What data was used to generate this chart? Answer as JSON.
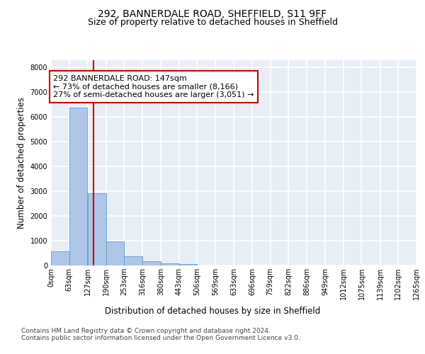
{
  "title1": "292, BANNERDALE ROAD, SHEFFIELD, S11 9FF",
  "title2": "Size of property relative to detached houses in Sheffield",
  "xlabel": "Distribution of detached houses by size in Sheffield",
  "ylabel": "Number of detached properties",
  "bar_values": [
    560,
    6380,
    2920,
    960,
    360,
    160,
    90,
    50,
    0,
    0,
    0,
    0,
    0,
    0,
    0,
    0,
    0,
    0,
    0
  ],
  "bin_edges": [
    0,
    63,
    127,
    190,
    253,
    316,
    380,
    443,
    506,
    569,
    633,
    696,
    759,
    822,
    886,
    949,
    1012,
    1075,
    1139,
    1202,
    1265
  ],
  "tick_labels": [
    "0sqm",
    "63sqm",
    "127sqm",
    "190sqm",
    "253sqm",
    "316sqm",
    "380sqm",
    "443sqm",
    "506sqm",
    "569sqm",
    "633sqm",
    "696sqm",
    "759sqm",
    "822sqm",
    "886sqm",
    "949sqm",
    "1012sqm",
    "1075sqm",
    "1139sqm",
    "1202sqm",
    "1265sqm"
  ],
  "bar_color": "#aec6e8",
  "bar_edge_color": "#5b9bd5",
  "vline_x": 147,
  "vline_color": "#cc0000",
  "annotation_text": "292 BANNERDALE ROAD: 147sqm\n← 73% of detached houses are smaller (8,166)\n27% of semi-detached houses are larger (3,051) →",
  "annotation_box_color": "#cc0000",
  "ylim": [
    0,
    8300
  ],
  "yticks": [
    0,
    1000,
    2000,
    3000,
    4000,
    5000,
    6000,
    7000,
    8000
  ],
  "footer_text": "Contains HM Land Registry data © Crown copyright and database right 2024.\nContains public sector information licensed under the Open Government Licence v3.0.",
  "bg_color": "#e8eef5",
  "grid_color": "#ffffff",
  "title_fontsize": 10,
  "subtitle_fontsize": 9,
  "axis_label_fontsize": 8.5,
  "tick_fontsize": 7,
  "annotation_fontsize": 8,
  "footer_fontsize": 6.5
}
